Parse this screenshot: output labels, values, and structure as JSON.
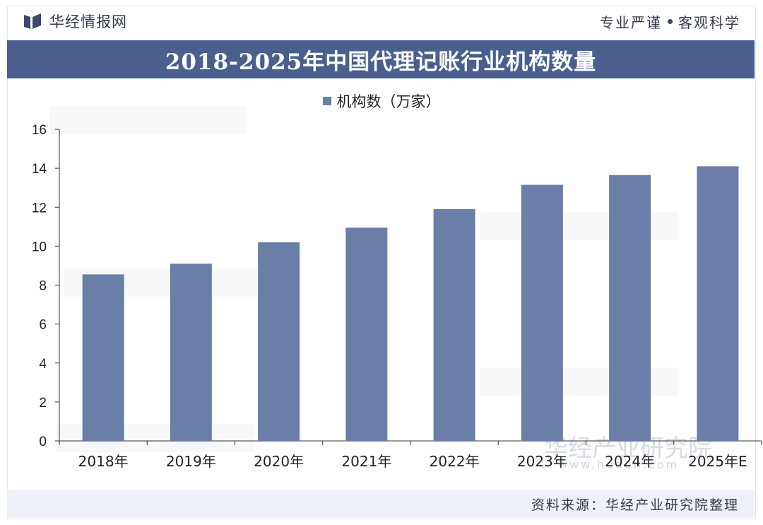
{
  "header": {
    "brand": "华经情报网",
    "slogan_left": "专业严谨",
    "slogan_right": "客观科学"
  },
  "chart_data": {
    "type": "bar",
    "title": "2018-2025年中国代理记账行业机构数量",
    "categories": [
      "2018年",
      "2019年",
      "2020年",
      "2021年",
      "2022年",
      "2023年",
      "2024年",
      "2025年E"
    ],
    "series": [
      {
        "name": "机构数（万家）",
        "values": [
          8.55,
          9.1,
          10.2,
          10.95,
          11.9,
          13.15,
          13.65,
          14.1
        ]
      }
    ],
    "ylim": [
      0,
      16
    ],
    "yticks": [
      0,
      2,
      4,
      6,
      8,
      10,
      12,
      14,
      16
    ],
    "grid": false,
    "legend": "top-center",
    "bar_color": "#6b7ea8"
  },
  "watermark": {
    "name": "华经产业研究院",
    "url": "www.huaon.com"
  },
  "footer": {
    "source": "资料来源：华经产业研究院整理"
  },
  "colors": {
    "accent": "#4a5f8e",
    "bar": "#6b7ea8"
  }
}
